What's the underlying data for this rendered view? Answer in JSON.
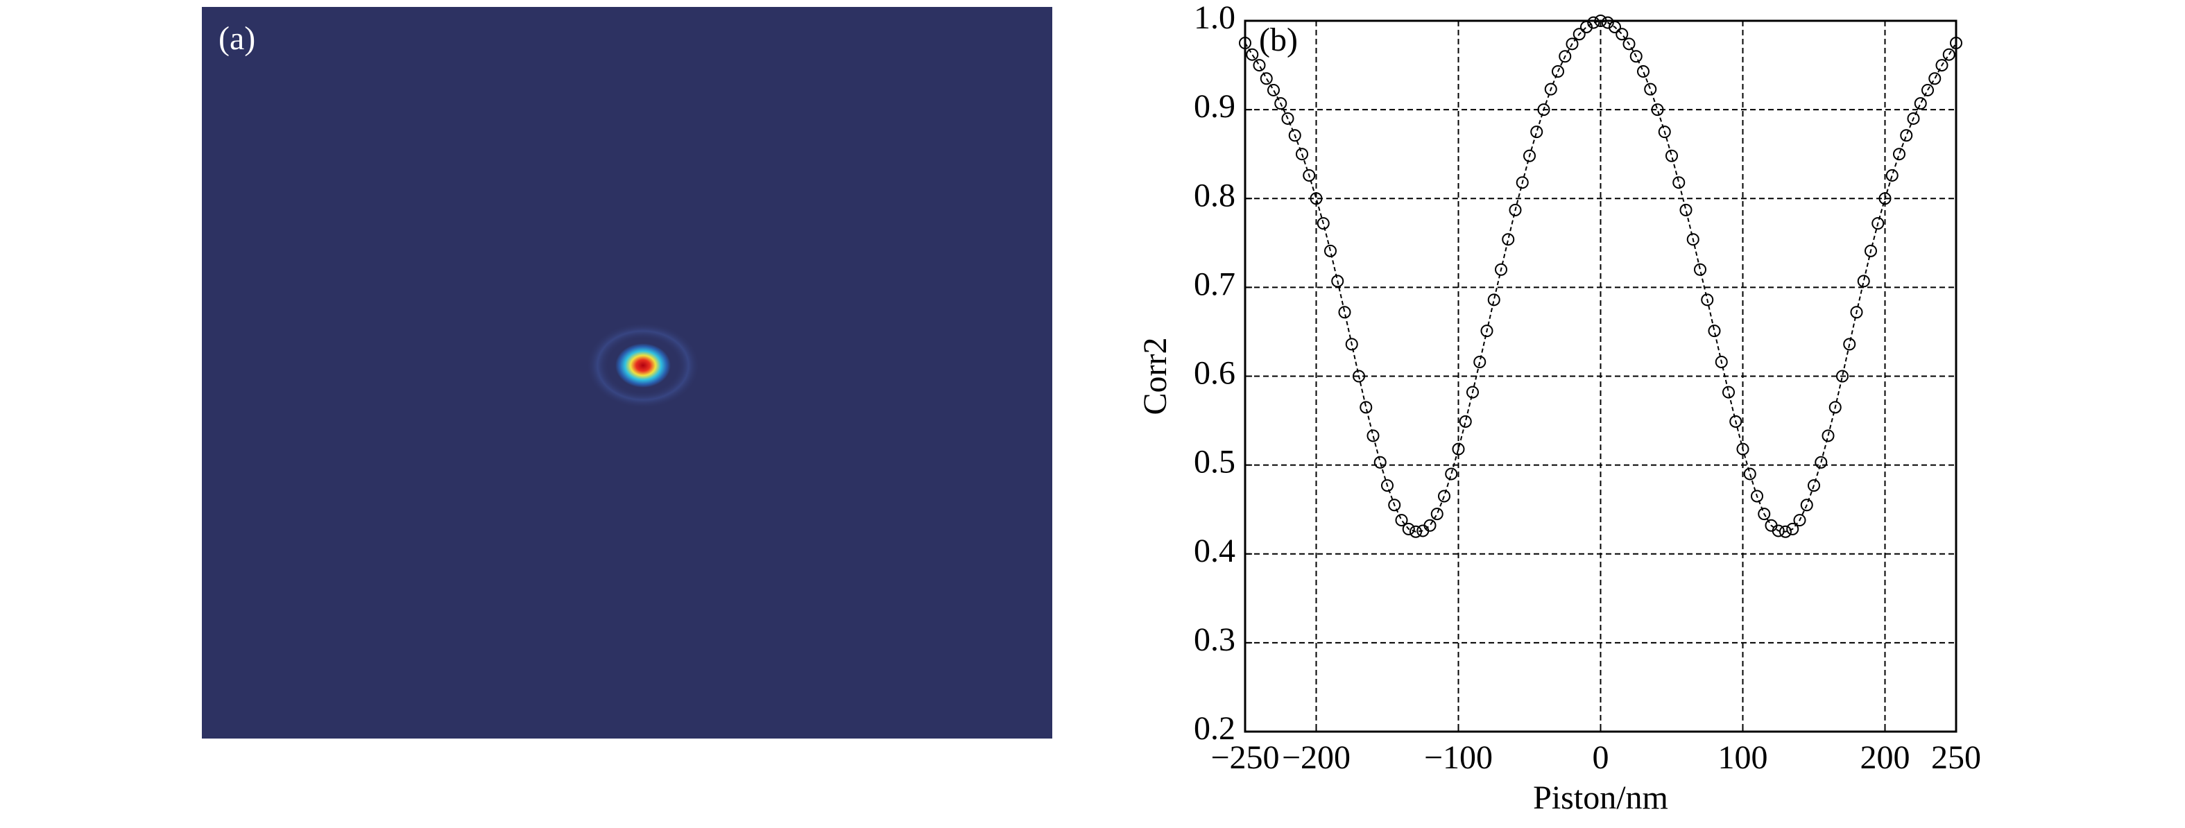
{
  "chart_data": [
    {
      "type": "image",
      "label": "(a)"
    },
    {
      "type": "line",
      "label": "(b)",
      "xlabel": "Piston/nm",
      "ylabel": "Corr2",
      "color": "#000000",
      "x": [
        -250,
        -245,
        -240,
        -235,
        -230,
        -225,
        -220,
        -215,
        -210,
        -205,
        -200,
        -195,
        -190,
        -185,
        -180,
        -175,
        -170,
        -165,
        -160,
        -155,
        -150,
        -145,
        -140,
        -135,
        -130,
        -125,
        -120,
        -115,
        -110,
        -105,
        -100,
        -95,
        -90,
        -85,
        -80,
        -75,
        -70,
        -65,
        -60,
        -55,
        -50,
        -45,
        -40,
        -35,
        -30,
        -25,
        -20,
        -15,
        -10,
        -5,
        0,
        5,
        10,
        15,
        20,
        25,
        30,
        35,
        40,
        45,
        50,
        55,
        60,
        65,
        70,
        75,
        80,
        85,
        90,
        95,
        100,
        105,
        110,
        115,
        120,
        125,
        130,
        135,
        140,
        145,
        150,
        155,
        160,
        165,
        170,
        175,
        180,
        185,
        190,
        195,
        200,
        205,
        210,
        215,
        220,
        225,
        230,
        235,
        240,
        245,
        250
      ],
      "values": [
        0.975,
        0.962,
        0.95,
        0.935,
        0.922,
        0.907,
        0.89,
        0.871,
        0.85,
        0.826,
        0.8,
        0.772,
        0.741,
        0.707,
        0.672,
        0.636,
        0.6,
        0.565,
        0.533,
        0.503,
        0.477,
        0.455,
        0.438,
        0.428,
        0.425,
        0.426,
        0.432,
        0.445,
        0.465,
        0.49,
        0.518,
        0.549,
        0.582,
        0.616,
        0.651,
        0.686,
        0.72,
        0.754,
        0.787,
        0.818,
        0.848,
        0.875,
        0.9,
        0.923,
        0.943,
        0.96,
        0.974,
        0.985,
        0.993,
        0.998,
        1.0,
        0.998,
        0.993,
        0.985,
        0.974,
        0.96,
        0.943,
        0.923,
        0.9,
        0.875,
        0.848,
        0.818,
        0.787,
        0.754,
        0.72,
        0.686,
        0.651,
        0.616,
        0.582,
        0.549,
        0.518,
        0.49,
        0.465,
        0.445,
        0.432,
        0.426,
        0.425,
        0.428,
        0.438,
        0.455,
        0.477,
        0.503,
        0.533,
        0.565,
        0.6,
        0.636,
        0.672,
        0.707,
        0.741,
        0.772,
        0.8,
        0.826,
        0.85,
        0.871,
        0.89,
        0.907,
        0.922,
        0.935,
        0.95,
        0.962,
        0.975
      ],
      "xlim": [
        -250,
        250
      ],
      "ylim": [
        0.2,
        1.0
      ],
      "xticks": [
        {
          "value": -250,
          "label": "−250"
        },
        {
          "value": -200,
          "label": "−200"
        },
        {
          "value": -100,
          "label": "−100"
        },
        0,
        100,
        200,
        250
      ],
      "yticks": [
        0.2,
        0.3,
        0.4,
        0.5,
        0.6,
        0.7,
        0.8,
        0.9,
        {
          "value": 1,
          "label": "1.0"
        }
      ],
      "grid": true
    }
  ]
}
